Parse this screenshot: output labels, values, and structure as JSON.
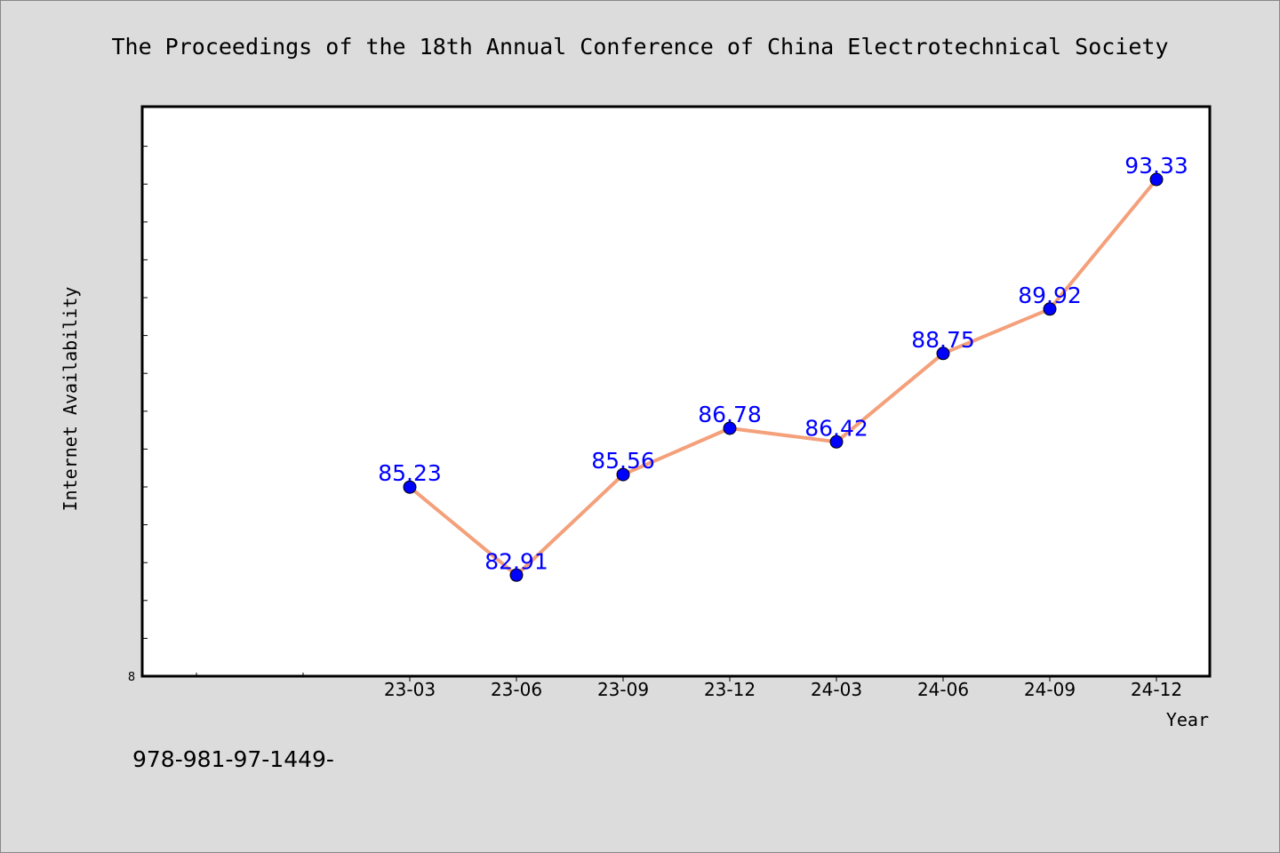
{
  "colors": {
    "background": "#dcdcdc",
    "plot_background": "#ffffff",
    "line": "#f4a07a",
    "marker": "#0000ff",
    "data_label": "#0000ff"
  },
  "footer": {
    "text": "978-981-97-1449-"
  },
  "chart_data": {
    "type": "line",
    "title": "The Proceedings of the 18th Annual Conference of China Electrotechnical Society",
    "xlabel": "Year",
    "ylabel": "Internet Availability",
    "categories": [
      "23-03",
      "23-06",
      "23-09",
      "23-12",
      "24-03",
      "24-06",
      "24-09",
      "24-12"
    ],
    "series": [
      {
        "values": [
          85.23,
          82.91,
          85.56,
          86.78,
          86.42,
          88.75,
          89.92,
          93.33
        ]
      }
    ],
    "data_labels": [
      "85.23",
      "82.91",
      "85.56",
      "86.78",
      "86.42",
      "88.75",
      "89.92",
      "93.33"
    ],
    "y_origin_label": "8",
    "ylim": [
      80.25,
      95.25
    ],
    "grid": false,
    "legend": "none"
  }
}
